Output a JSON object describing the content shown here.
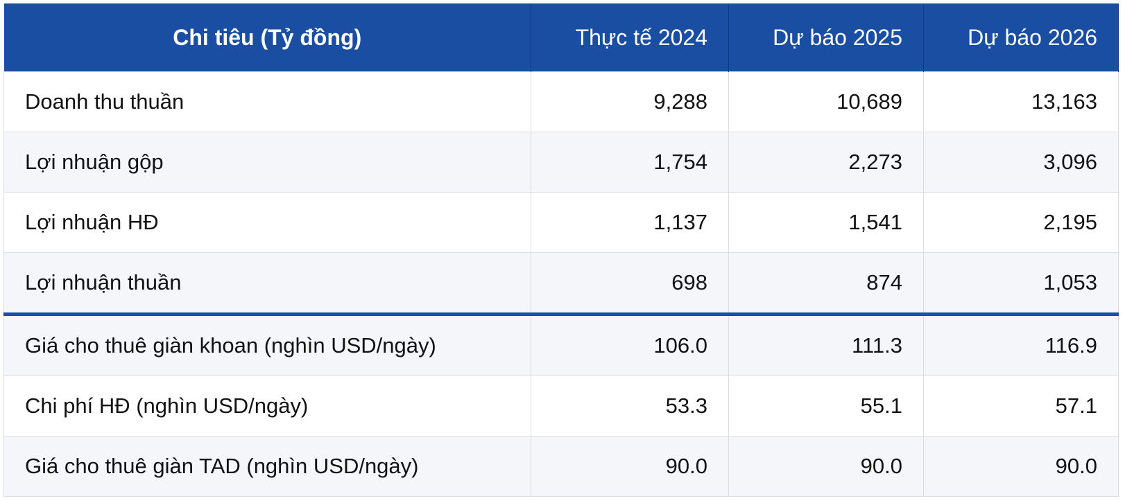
{
  "table": {
    "header": [
      "Chi tiêu (Tỷ đồng)",
      "Thực tế 2024",
      "Dự báo 2025",
      "Dự báo 2026"
    ],
    "rows": [
      [
        "Doanh thu thuần",
        "9,288",
        "10,689",
        "13,163"
      ],
      [
        "Lợi nhuận gộp",
        "1,754",
        "2,273",
        "3,096"
      ],
      [
        "Lợi nhuận HĐ",
        "1,137",
        "1,541",
        "2,195"
      ],
      [
        "Lợi nhuận thuần",
        "698",
        "874",
        "1,053"
      ],
      [
        "Giá cho thuê giàn khoan (nghìn USD/ngày)",
        "106.0",
        "111.3",
        "116.9"
      ],
      [
        "Chi phí HĐ (nghìn USD/ngày)",
        "53.3",
        "55.1",
        "57.1"
      ],
      [
        "Giá cho thuê giàn TAD (nghìn USD/ngày)",
        "90.0",
        "90.0",
        "90.0"
      ]
    ]
  }
}
